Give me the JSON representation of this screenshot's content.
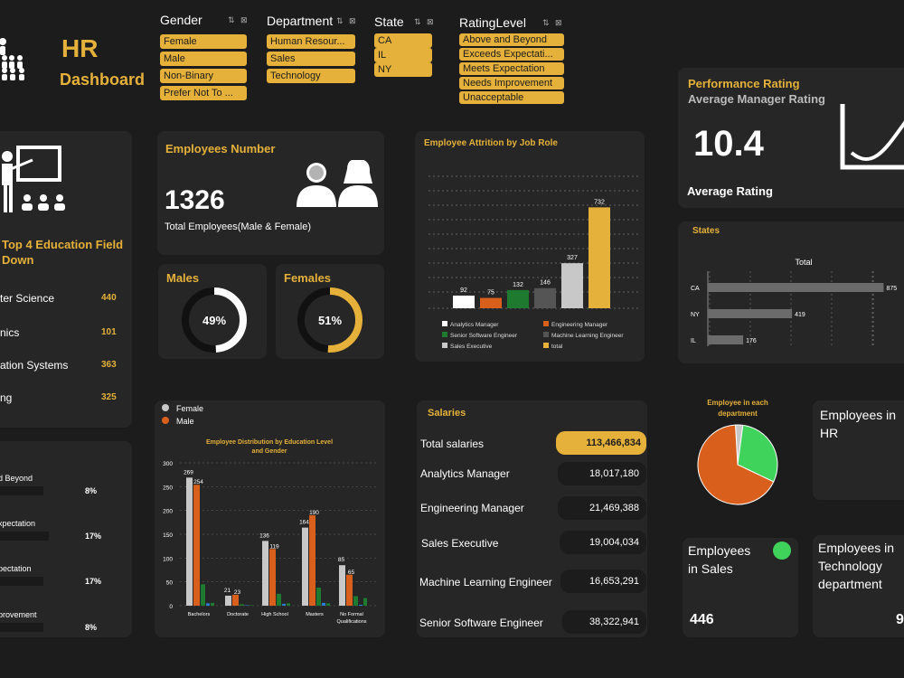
{
  "header": {
    "title": "HR",
    "subtitle": "Dashboard"
  },
  "slicers": {
    "gender": {
      "title": "Gender",
      "items": [
        "Female",
        "Male",
        "Non-Binary",
        "Prefer Not To ..."
      ]
    },
    "department": {
      "title": "Department",
      "items": [
        "Human Resour...",
        "Sales",
        "Technology"
      ]
    },
    "state": {
      "title": "State",
      "items": [
        "CA",
        "IL",
        "NY"
      ]
    },
    "rating": {
      "title": "RatingLevel",
      "items": [
        "Above and Beyond",
        "Exceeds Expectati...",
        "Meets Expectation",
        "Needs Improvement",
        "Unacceptable"
      ]
    },
    "controls_glyph": "⇅ ⊠"
  },
  "performance": {
    "title": "Performance Rating",
    "subtitle": "Average Manager Rating",
    "value": "10.4",
    "caption": "Average  Rating"
  },
  "education_field": {
    "title": "Top 4 Education Field",
    "subtitle": "Down",
    "rows": [
      {
        "label": "ter Science",
        "value": "440"
      },
      {
        "label": "nics",
        "value": "101"
      },
      {
        "label": "ation Systems",
        "value": "363"
      },
      {
        "label": "ng",
        "value": "325"
      }
    ]
  },
  "employees_number": {
    "title": "Employees Number",
    "value": "1326",
    "caption": "Total Employees(Male & Female)"
  },
  "males": {
    "title": "Males",
    "percent_label": "49%",
    "fraction": 0.49
  },
  "females": {
    "title": "Females",
    "percent_label": "51%",
    "fraction": 0.51
  },
  "rating_levels": {
    "rows": [
      {
        "label": "d Beyond",
        "value": "8%"
      },
      {
        "label": "xpectation",
        "value": "17%"
      },
      {
        "label": "pectation",
        "value": "17%"
      },
      {
        "label": "provement",
        "value": "8%"
      }
    ]
  },
  "salaries": {
    "title": "Salaries",
    "rows": [
      {
        "label": "Total salaries",
        "value": "113,466,834"
      },
      {
        "label": "Analytics Manager",
        "value": "18,017,180"
      },
      {
        "label": "Engineering Manager",
        "value": "21,469,388"
      },
      {
        "label": "Sales Executive",
        "value": "19,004,034"
      },
      {
        "label": "Machine Learning Engineer",
        "value": "16,653,291"
      },
      {
        "label": "Senior Software Engineer",
        "value": "38,322,941"
      }
    ]
  },
  "employees_hr": {
    "title": "Employees in HR"
  },
  "employees_sales": {
    "title": "Employees in Sales",
    "value": "446",
    "dot_color": "#3fd35b"
  },
  "employees_tech": {
    "title": "Employees in Technology department",
    "value": "9"
  },
  "colors": {
    "gold": "#e5b13a",
    "orange": "#d9601c",
    "green": "#1e7a2e",
    "gray": "#555555",
    "lightgray": "#c8c8c8",
    "white": "#ffffff",
    "brightgreen": "#3fd35b"
  },
  "chart_data": [
    {
      "id": "attrition",
      "type": "bar",
      "title": "Employee Attrition by Job Role",
      "categories": [
        "Analytics Manager",
        "Engineering Manager",
        "Senior Software Engineer",
        "Machine Learning Engineer",
        "Sales Executive",
        "total"
      ],
      "values": [
        92,
        75,
        132,
        146,
        327,
        732
      ],
      "bar_colors": [
        "#ffffff",
        "#d9601c",
        "#1e7a2e",
        "#555555",
        "#c8c8c8",
        "#e5b13a"
      ],
      "ylim": [
        0,
        800
      ],
      "legend": "bottom"
    },
    {
      "id": "education",
      "type": "bar",
      "title": "Employee Distribution by Education Level and Gender",
      "categories": [
        "Bachelors",
        "Doctorate",
        "High School",
        "Masters",
        "No Formal Qualifications"
      ],
      "series": [
        {
          "name": "Female",
          "values": [
            269,
            21,
            136,
            164,
            85
          ],
          "color": "#c8c8c8",
          "labels": [
            "269",
            "21",
            "136",
            "164",
            "85"
          ]
        },
        {
          "name": "Male",
          "values": [
            254,
            23,
            119,
            190,
            65
          ],
          "color": "#d9601c",
          "labels": [
            "254",
            "23",
            "119",
            "190",
            "65"
          ]
        },
        {
          "name": "",
          "values": [
            45,
            3,
            25,
            38,
            20
          ],
          "color": "#1e7a2e"
        },
        {
          "name": "",
          "values": [
            5,
            1,
            4,
            6,
            2
          ],
          "color": "#2a7fd4"
        },
        {
          "name": "",
          "values": [
            6,
            1,
            5,
            5,
            16
          ],
          "color": "#1e7a2e"
        }
      ],
      "yticks": [
        "0",
        "50",
        "100",
        "150",
        "200",
        "250",
        "300"
      ],
      "ylim": [
        0,
        300
      ],
      "legend": "top-left"
    },
    {
      "id": "states",
      "type": "bar",
      "title": "States",
      "series_label": "Total",
      "categories": [
        "CA",
        "NY",
        "IL"
      ],
      "values": [
        875,
        419,
        176
      ],
      "labels": [
        "875",
        "419",
        "176"
      ],
      "xlim": [
        0,
        900
      ]
    },
    {
      "id": "department_pie",
      "type": "pie",
      "title": "Employee in each department",
      "slices": [
        {
          "label": "Human Resources",
          "value": 3,
          "color": "#c8c8c8"
        },
        {
          "label": "Sales",
          "value": 30,
          "color": "#3fd35b"
        },
        {
          "label": "Technology",
          "value": 67,
          "color": "#d9601c"
        }
      ]
    }
  ]
}
